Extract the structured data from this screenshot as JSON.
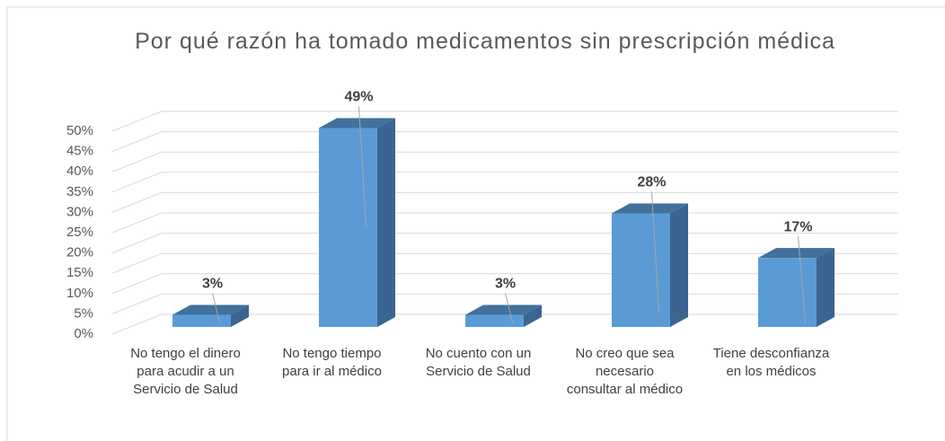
{
  "chart_data": {
    "type": "bar3d",
    "title": "Por qué razón ha tomado medicamentos sin prescripción médica",
    "categories": [
      "No tengo el dinero para acudir a un Servicio de Salud",
      "No tengo tiempo para ir al médico",
      "No cuento con un Servicio de Salud",
      "No creo que sea necesario consultar al médico",
      "Tiene desconfianza en los médicos"
    ],
    "values": [
      3,
      49,
      3,
      28,
      17
    ],
    "value_labels": [
      "3%",
      "49%",
      "3%",
      "28%",
      "17%"
    ],
    "color": "#5b9bd5",
    "ylim": [
      0,
      50
    ],
    "yticks": [
      {
        "value": 0,
        "label": "0%"
      },
      {
        "value": 5,
        "label": "5%"
      },
      {
        "value": 10,
        "label": "10%"
      },
      {
        "value": 15,
        "label": "15%"
      },
      {
        "value": 20,
        "label": "20%"
      },
      {
        "value": 25,
        "label": "25%"
      },
      {
        "value": 30,
        "label": "30%"
      },
      {
        "value": 35,
        "label": "35%"
      },
      {
        "value": 40,
        "label": "40%"
      },
      {
        "value": 45,
        "label": "45%"
      },
      {
        "value": 50,
        "label": "50%"
      }
    ],
    "grid": true
  }
}
